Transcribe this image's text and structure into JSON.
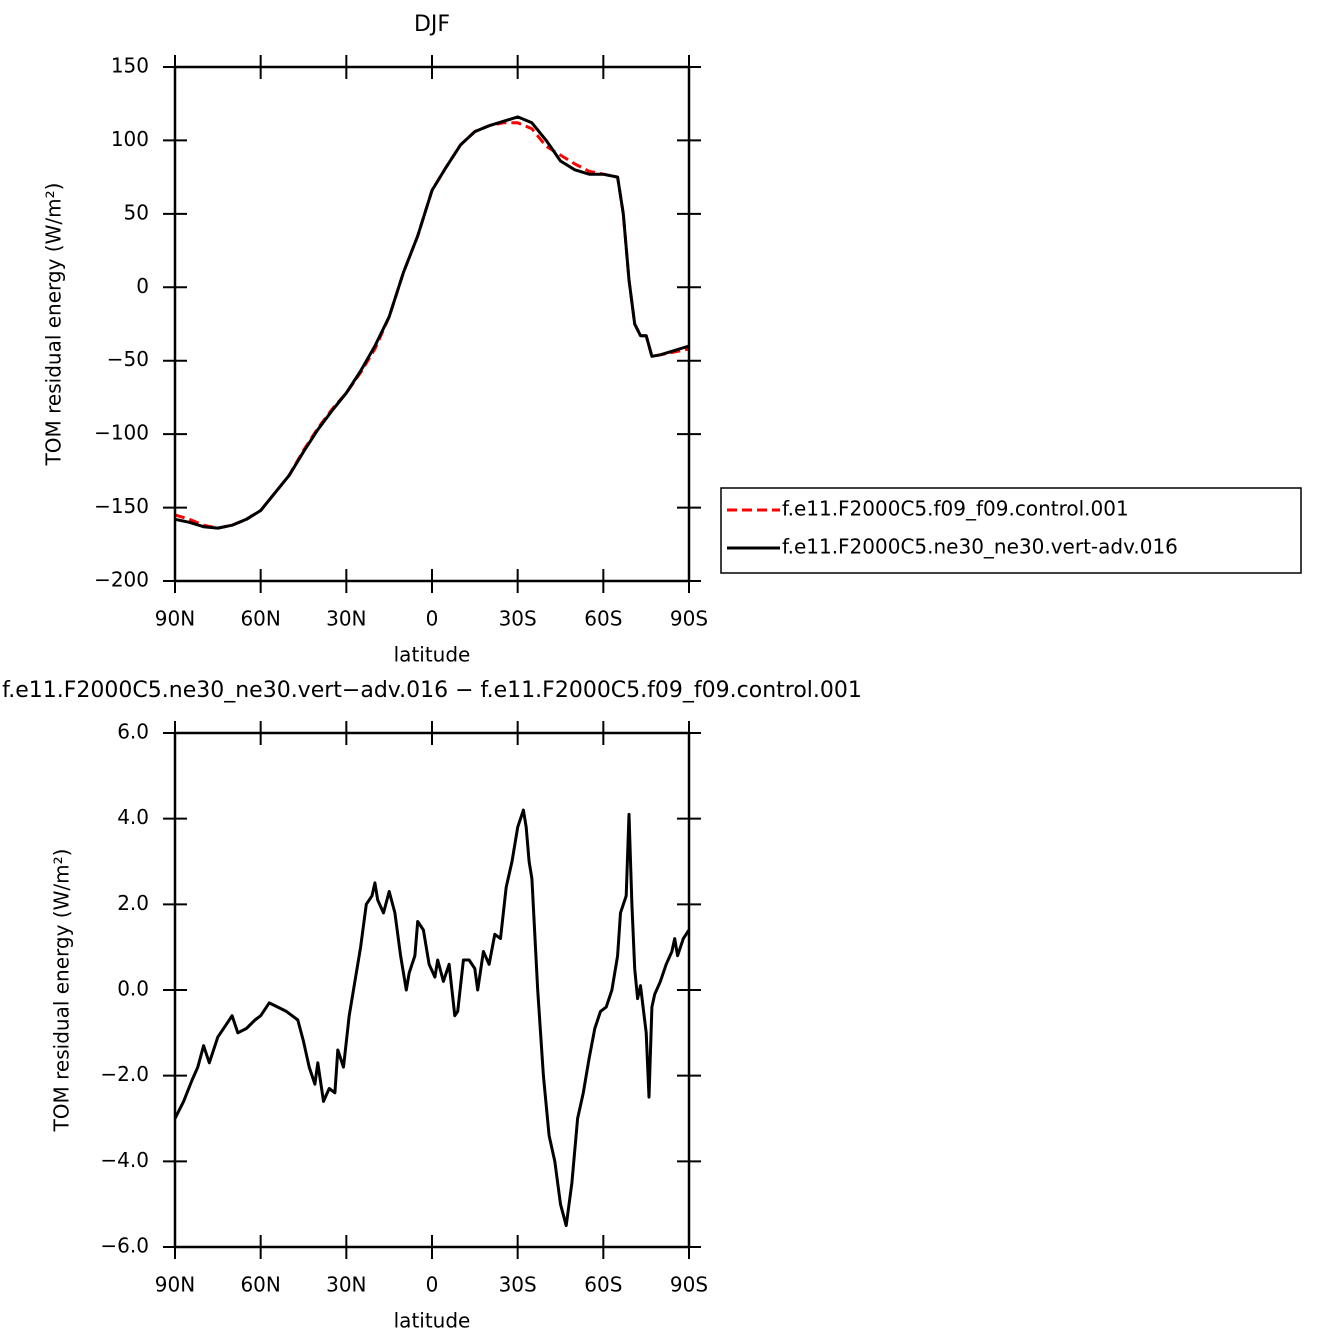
{
  "chart_data": [
    {
      "type": "line",
      "title": "DJF",
      "xlabel": "latitude",
      "ylabel": "TOM residual energy (W/m²)",
      "x": [
        90,
        85,
        80,
        75,
        70,
        65,
        60,
        55,
        50,
        45,
        40,
        35,
        30,
        25,
        20,
        15,
        10,
        5,
        0,
        -5,
        -10,
        -15,
        -20,
        -25,
        -30,
        -35,
        -40,
        -45,
        -50,
        -55,
        -60,
        -65,
        -67,
        -69,
        -71,
        -73,
        -75,
        -77,
        -80,
        -85,
        -90
      ],
      "xlim": [
        90,
        -90
      ],
      "xticks": [
        {
          "value": 90,
          "label": "90N"
        },
        {
          "value": 60,
          "label": "60N"
        },
        {
          "value": 30,
          "label": "30N"
        },
        0,
        {
          "value": -30,
          "label": "30S"
        },
        {
          "value": -60,
          "label": "60S"
        },
        {
          "value": -90,
          "label": "90S"
        }
      ],
      "ylim": [
        -200,
        150
      ],
      "yticks": [
        {
          "value": -200,
          "label": "−200"
        },
        {
          "value": -150,
          "label": "−150"
        },
        {
          "value": -100,
          "label": "−100"
        },
        {
          "value": -50,
          "label": "−50"
        },
        0,
        50,
        100,
        150
      ],
      "legend": "right",
      "series": [
        {
          "name": "f.e11.F2000C5.f09_f09.control.001",
          "color": "#ff0000",
          "line_style": "dashed",
          "values": [
            -155,
            -158,
            -162,
            -164,
            -162,
            -158,
            -152,
            -140,
            -128,
            -111,
            -96,
            -83,
            -72,
            -58,
            -42,
            -20,
            10,
            35,
            66,
            82,
            97,
            106,
            110,
            112,
            112,
            108,
            96,
            90,
            84,
            79,
            77,
            75,
            50,
            5,
            -25,
            -33,
            -33,
            -47,
            -46,
            -44,
            -42
          ]
        },
        {
          "name": "f.e11.F2000C5.ne30_ne30.vert-adv.016",
          "color": "#000000",
          "line_style": "solid",
          "values": [
            -158,
            -160,
            -163,
            -164,
            -162,
            -158,
            -152,
            -140,
            -128,
            -112,
            -97,
            -84,
            -72,
            -57,
            -40,
            -20,
            10,
            35,
            66,
            82,
            97,
            106,
            110,
            113,
            116,
            112,
            100,
            86,
            80,
            77,
            77,
            75,
            50,
            5,
            -25,
            -33,
            -33,
            -47,
            -46,
            -43,
            -40
          ]
        }
      ]
    },
    {
      "type": "line",
      "title": "f.e11.F2000C5.ne30_ne30.vert−adv.016 − f.e11.F2000C5.f09_f09.control.001",
      "xlabel": "latitude",
      "ylabel": "TOM residual energy (W/m²)",
      "x": [
        90,
        87,
        84,
        82,
        80,
        78,
        75,
        72,
        70,
        68,
        65,
        62,
        60,
        57,
        54,
        51,
        49,
        47,
        45,
        43,
        41,
        40,
        38,
        36,
        34,
        33,
        31,
        29,
        27,
        25,
        23,
        21,
        20,
        19,
        17,
        15,
        13,
        11,
        9,
        8,
        6,
        5,
        3,
        1,
        -1,
        -2,
        -4,
        -6,
        -8,
        -9,
        -11,
        -13,
        -15,
        -16,
        -18,
        -20,
        -22,
        -24,
        -26,
        -28,
        -30,
        -32,
        -33,
        -34,
        -35,
        -37,
        -39,
        -41,
        -43,
        -45,
        -47,
        -49,
        -51,
        -53,
        -55,
        -57,
        -59,
        -61,
        -63,
        -65,
        -66,
        -68,
        -69,
        -70,
        -71,
        -72,
        -73,
        -75,
        -76,
        -77,
        -78,
        -80,
        -82,
        -84,
        -85,
        -86,
        -88,
        -90
      ],
      "xlim": [
        90,
        -90
      ],
      "xticks": [
        {
          "value": 90,
          "label": "90N"
        },
        {
          "value": 60,
          "label": "60N"
        },
        {
          "value": 30,
          "label": "30N"
        },
        0,
        {
          "value": -30,
          "label": "30S"
        },
        {
          "value": -60,
          "label": "60S"
        },
        {
          "value": -90,
          "label": "90S"
        }
      ],
      "ylim": [
        -6,
        6
      ],
      "yticks": [
        {
          "value": -6,
          "label": "−6.0"
        },
        {
          "value": -4,
          "label": "−4.0"
        },
        {
          "value": -2,
          "label": "−2.0"
        },
        {
          "value": 0,
          "label": "0.0"
        },
        {
          "value": 2,
          "label": "2.0"
        },
        {
          "value": 4,
          "label": "4.0"
        },
        {
          "value": 6,
          "label": "6.0"
        }
      ],
      "series": [
        {
          "color": "#000000",
          "line_style": "solid",
          "values": [
            -3.0,
            -2.6,
            -2.1,
            -1.8,
            -1.3,
            -1.7,
            -1.1,
            -0.8,
            -0.6,
            -1.0,
            -0.9,
            -0.7,
            -0.6,
            -0.3,
            -0.4,
            -0.5,
            -0.6,
            -0.7,
            -1.2,
            -1.8,
            -2.2,
            -1.7,
            -2.6,
            -2.3,
            -2.4,
            -1.4,
            -1.8,
            -0.6,
            0.2,
            1.0,
            2.0,
            2.2,
            2.5,
            2.1,
            1.8,
            2.3,
            1.8,
            0.8,
            0.0,
            0.4,
            0.8,
            1.6,
            1.4,
            0.6,
            0.3,
            0.7,
            0.2,
            0.6,
            -0.6,
            -0.5,
            0.7,
            0.7,
            0.5,
            0.0,
            0.9,
            0.6,
            1.3,
            1.2,
            2.4,
            3.0,
            3.8,
            4.2,
            3.8,
            3.0,
            2.6,
            0.0,
            -2.0,
            -3.4,
            -4.0,
            -5.0,
            -5.5,
            -4.5,
            -3.0,
            -2.4,
            -1.6,
            -0.9,
            -0.5,
            -0.4,
            0.0,
            0.8,
            1.8,
            2.2,
            4.1,
            2.0,
            0.5,
            -0.2,
            0.1,
            -1.0,
            -2.5,
            -0.4,
            -0.1,
            0.2,
            0.6,
            0.9,
            1.2,
            0.8,
            1.2,
            1.4
          ]
        }
      ]
    }
  ]
}
